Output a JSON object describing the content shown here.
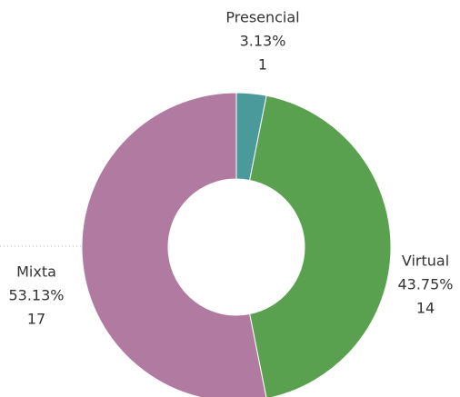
{
  "chart_data": {
    "type": "donut",
    "categories": [
      "Presencial",
      "Virtual",
      "Mixta"
    ],
    "values": [
      1,
      14,
      17
    ],
    "percent_labels": [
      "3.13%",
      "43.75%",
      "53.13%"
    ],
    "colors": [
      "#4a9a9c",
      "#59a14f",
      "#b07aa1"
    ]
  }
}
